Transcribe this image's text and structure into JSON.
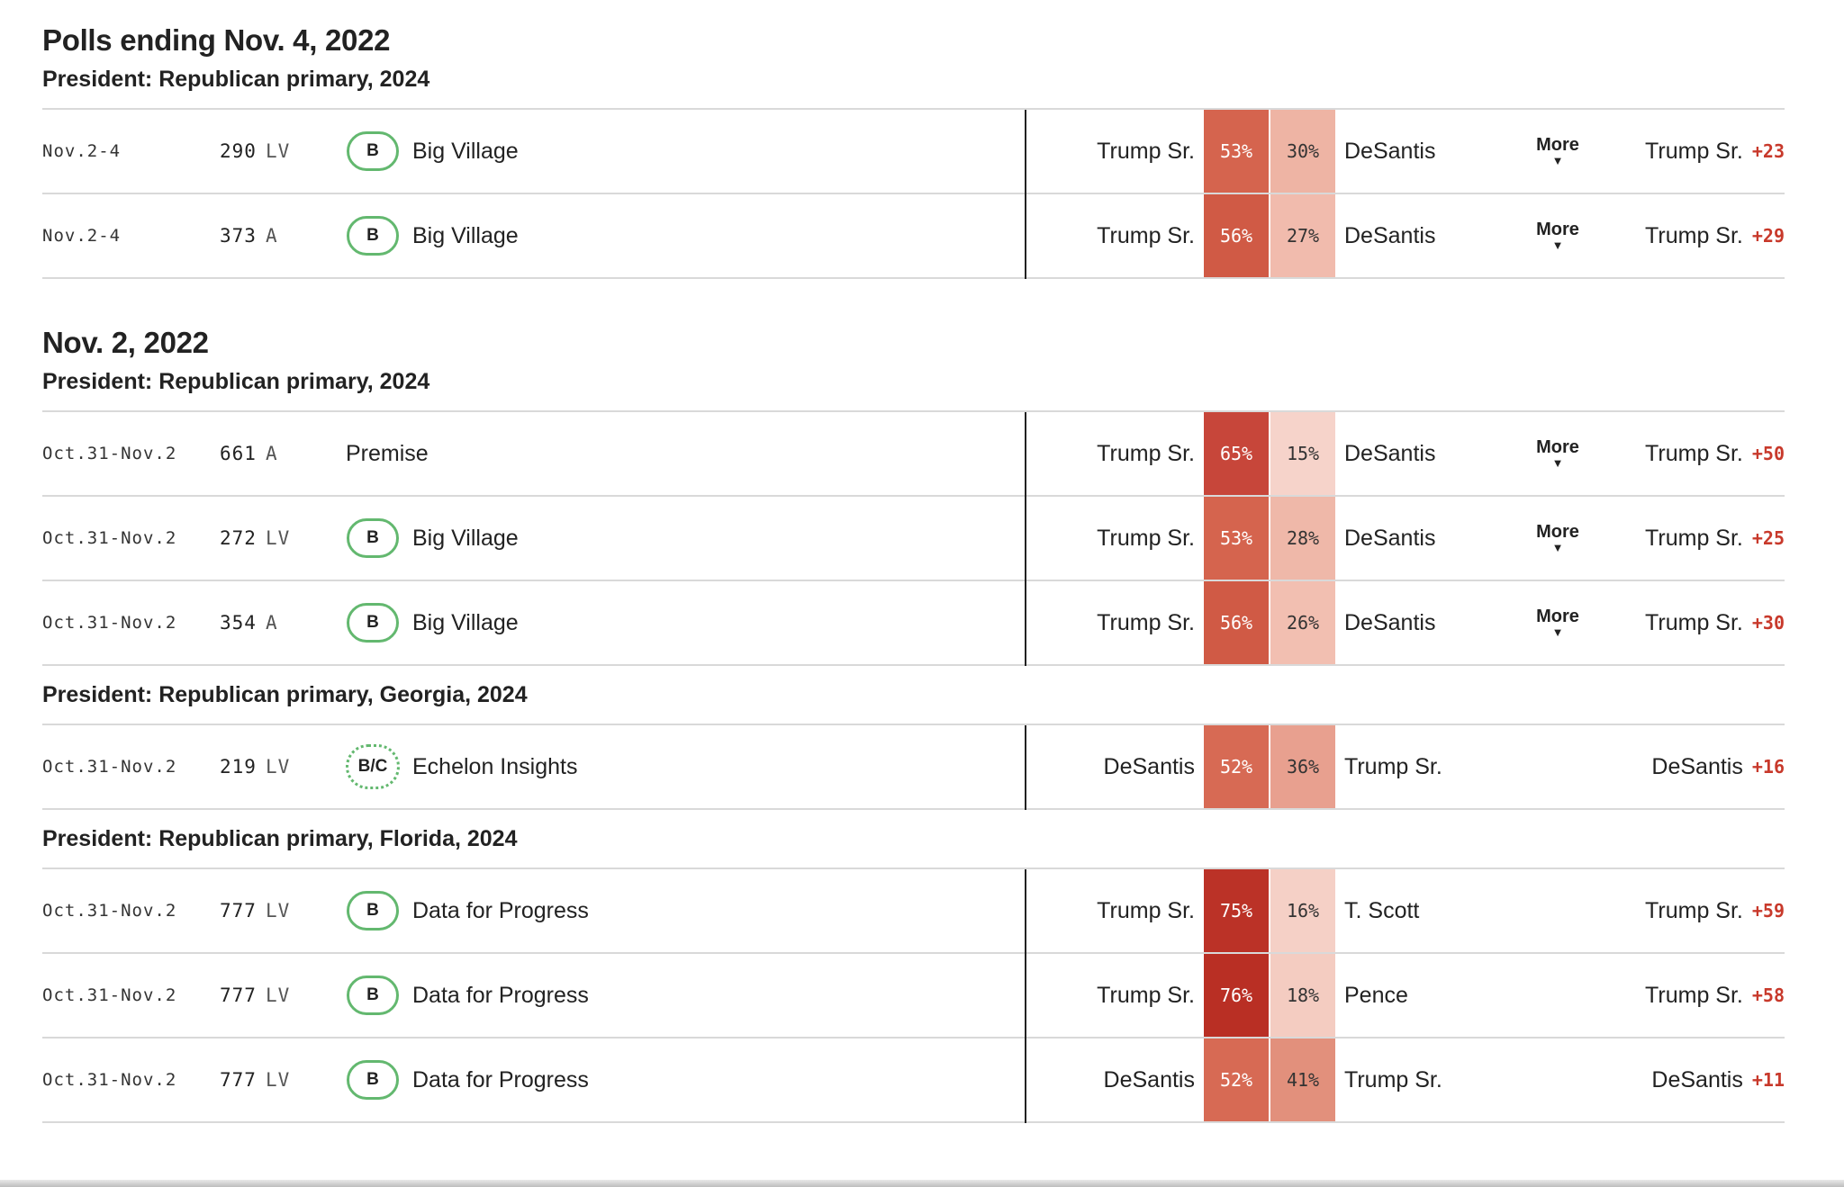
{
  "sections": [
    {
      "date_heading": "Polls ending Nov. 4, 2022",
      "groups": [
        {
          "heading": "President: Republican primary, 2024",
          "rows": [
            {
              "dates": "Nov.2-4",
              "sample": "290",
              "population": "LV",
              "grade": "B",
              "pollster": "Big Village",
              "cand_a": "Trump Sr.",
              "pct_a": "53%",
              "pct_b": "30%",
              "cand_b": "DeSantis",
              "more": "More",
              "net_leader": "Trump Sr.",
              "net_value": "+23",
              "color_a": "#d5644e",
              "color_b": "#eeb4a4"
            },
            {
              "dates": "Nov.2-4",
              "sample": "373",
              "population": "A",
              "grade": "B",
              "pollster": "Big Village",
              "cand_a": "Trump Sr.",
              "pct_a": "56%",
              "pct_b": "27%",
              "cand_b": "DeSantis",
              "more": "More",
              "net_leader": "Trump Sr.",
              "net_value": "+29",
              "color_a": "#d05a45",
              "color_b": "#f1bbad"
            }
          ]
        }
      ]
    },
    {
      "date_heading": "Nov. 2, 2022",
      "groups": [
        {
          "heading": "President: Republican primary, 2024",
          "rows": [
            {
              "dates": "Oct.31-Nov.2",
              "sample": "661",
              "population": "A",
              "grade": "",
              "pollster": "Premise",
              "cand_a": "Trump Sr.",
              "pct_a": "65%",
              "pct_b": "15%",
              "cand_b": "DeSantis",
              "more": "More",
              "net_leader": "Trump Sr.",
              "net_value": "+50",
              "color_a": "#c7463a",
              "color_b": "#f6d3ca"
            },
            {
              "dates": "Oct.31-Nov.2",
              "sample": "272",
              "population": "LV",
              "grade": "B",
              "pollster": "Big Village",
              "cand_a": "Trump Sr.",
              "pct_a": "53%",
              "pct_b": "28%",
              "cand_b": "DeSantis",
              "more": "More",
              "net_leader": "Trump Sr.",
              "net_value": "+25",
              "color_a": "#d5644e",
              "color_b": "#efb8a9"
            },
            {
              "dates": "Oct.31-Nov.2",
              "sample": "354",
              "population": "A",
              "grade": "B",
              "pollster": "Big Village",
              "cand_a": "Trump Sr.",
              "pct_a": "56%",
              "pct_b": "26%",
              "cand_b": "DeSantis",
              "more": "More",
              "net_leader": "Trump Sr.",
              "net_value": "+30",
              "color_a": "#d05a45",
              "color_b": "#f2bfb1"
            }
          ]
        },
        {
          "heading": "President: Republican primary, Georgia, 2024",
          "rows": [
            {
              "dates": "Oct.31-Nov.2",
              "sample": "219",
              "population": "LV",
              "grade": "B/C",
              "grade_dotted": true,
              "pollster": "Echelon Insights",
              "cand_a": "DeSantis",
              "pct_a": "52%",
              "pct_b": "36%",
              "cand_b": "Trump Sr.",
              "more": "",
              "net_leader": "DeSantis",
              "net_value": "+16",
              "color_a": "#d76a54",
              "color_b": "#e8a08f"
            }
          ]
        },
        {
          "heading": "President: Republican primary, Florida, 2024",
          "rows": [
            {
              "dates": "Oct.31-Nov.2",
              "sample": "777",
              "population": "LV",
              "grade": "B",
              "pollster": "Data for Progress",
              "cand_a": "Trump Sr.",
              "pct_a": "75%",
              "pct_b": "16%",
              "cand_b": "T. Scott",
              "more": "",
              "net_leader": "Trump Sr.",
              "net_value": "+59",
              "color_a": "#bb3227",
              "color_b": "#f5d0c6"
            },
            {
              "dates": "Oct.31-Nov.2",
              "sample": "777",
              "population": "LV",
              "grade": "B",
              "pollster": "Data for Progress",
              "cand_a": "Trump Sr.",
              "pct_a": "76%",
              "pct_b": "18%",
              "cand_b": "Pence",
              "more": "",
              "net_leader": "Trump Sr.",
              "net_value": "+58",
              "color_a": "#b92f24",
              "color_b": "#f4ccc1"
            },
            {
              "dates": "Oct.31-Nov.2",
              "sample": "777",
              "population": "LV",
              "grade": "B",
              "pollster": "Data for Progress",
              "cand_a": "DeSantis",
              "pct_a": "52%",
              "pct_b": "41%",
              "cand_b": "Trump Sr.",
              "more": "",
              "net_leader": "DeSantis",
              "net_value": "+11",
              "color_a": "#d76a54",
              "color_b": "#e2907c"
            }
          ]
        }
      ]
    }
  ]
}
